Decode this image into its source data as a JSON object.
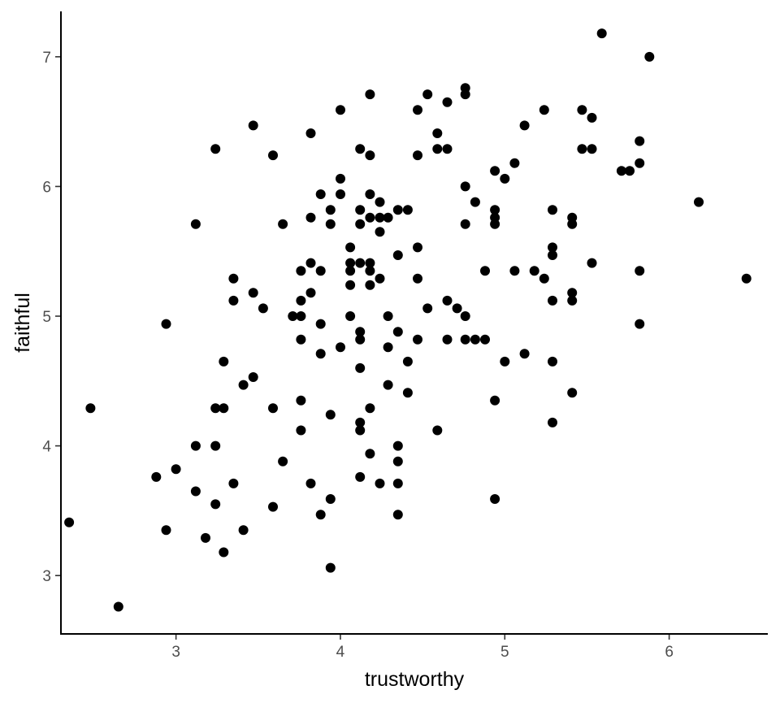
{
  "chart_data": {
    "type": "scatter",
    "title": "",
    "xlabel": "trustworthy",
    "ylabel": "faithful",
    "xlim": [
      2.3,
      6.6
    ],
    "ylim": [
      2.55,
      7.35
    ],
    "x_ticks": [
      3,
      4,
      5,
      6
    ],
    "y_ticks": [
      3,
      4,
      5,
      6,
      7
    ],
    "grid": false,
    "legend": "none",
    "point_color": "#000000",
    "points": [
      [
        2.35,
        3.41
      ],
      [
        2.48,
        4.29
      ],
      [
        2.65,
        2.76
      ],
      [
        2.88,
        3.76
      ],
      [
        2.94,
        3.35
      ],
      [
        2.94,
        4.94
      ],
      [
        3.0,
        3.82
      ],
      [
        3.12,
        3.65
      ],
      [
        3.12,
        4.0
      ],
      [
        3.12,
        5.71
      ],
      [
        3.18,
        3.29
      ],
      [
        3.24,
        3.55
      ],
      [
        3.24,
        4.0
      ],
      [
        3.24,
        4.29
      ],
      [
        3.24,
        6.29
      ],
      [
        3.29,
        3.18
      ],
      [
        3.29,
        4.29
      ],
      [
        3.29,
        4.65
      ],
      [
        3.35,
        3.71
      ],
      [
        3.35,
        5.12
      ],
      [
        3.35,
        5.29
      ],
      [
        3.41,
        3.35
      ],
      [
        3.41,
        4.47
      ],
      [
        3.47,
        4.53
      ],
      [
        3.47,
        5.18
      ],
      [
        3.47,
        6.47
      ],
      [
        3.53,
        5.06
      ],
      [
        3.59,
        3.53
      ],
      [
        3.59,
        4.29
      ],
      [
        3.59,
        6.24
      ],
      [
        3.65,
        3.88
      ],
      [
        3.65,
        5.71
      ],
      [
        3.71,
        5.0
      ],
      [
        3.76,
        4.12
      ],
      [
        3.76,
        4.35
      ],
      [
        3.76,
        4.82
      ],
      [
        3.76,
        5.0
      ],
      [
        3.76,
        5.12
      ],
      [
        3.76,
        5.35
      ],
      [
        3.82,
        3.71
      ],
      [
        3.82,
        5.18
      ],
      [
        3.82,
        5.41
      ],
      [
        3.82,
        5.76
      ],
      [
        3.82,
        6.41
      ],
      [
        3.88,
        3.47
      ],
      [
        3.88,
        4.71
      ],
      [
        3.88,
        4.94
      ],
      [
        3.88,
        5.35
      ],
      [
        3.88,
        5.94
      ],
      [
        3.94,
        3.06
      ],
      [
        3.94,
        3.59
      ],
      [
        3.94,
        4.24
      ],
      [
        3.94,
        5.71
      ],
      [
        3.94,
        5.82
      ],
      [
        4.0,
        4.76
      ],
      [
        4.0,
        5.94
      ],
      [
        4.0,
        6.06
      ],
      [
        4.0,
        6.59
      ],
      [
        4.06,
        5.0
      ],
      [
        4.06,
        5.24
      ],
      [
        4.06,
        5.35
      ],
      [
        4.06,
        5.41
      ],
      [
        4.06,
        5.53
      ],
      [
        4.12,
        3.76
      ],
      [
        4.12,
        4.12
      ],
      [
        4.12,
        4.18
      ],
      [
        4.12,
        4.6
      ],
      [
        4.12,
        4.82
      ],
      [
        4.12,
        4.88
      ],
      [
        4.12,
        5.41
      ],
      [
        4.12,
        5.71
      ],
      [
        4.12,
        5.82
      ],
      [
        4.12,
        6.29
      ],
      [
        4.18,
        3.94
      ],
      [
        4.18,
        4.29
      ],
      [
        4.18,
        5.24
      ],
      [
        4.18,
        5.35
      ],
      [
        4.18,
        5.41
      ],
      [
        4.18,
        5.76
      ],
      [
        4.18,
        5.94
      ],
      [
        4.18,
        6.24
      ],
      [
        4.18,
        6.71
      ],
      [
        4.24,
        3.71
      ],
      [
        4.24,
        5.29
      ],
      [
        4.24,
        5.65
      ],
      [
        4.24,
        5.76
      ],
      [
        4.24,
        5.88
      ],
      [
        4.29,
        4.47
      ],
      [
        4.29,
        4.76
      ],
      [
        4.29,
        5.0
      ],
      [
        4.29,
        5.76
      ],
      [
        4.35,
        3.47
      ],
      [
        4.35,
        3.71
      ],
      [
        4.35,
        3.88
      ],
      [
        4.35,
        4.0
      ],
      [
        4.35,
        4.88
      ],
      [
        4.35,
        5.47
      ],
      [
        4.35,
        5.82
      ],
      [
        4.41,
        4.41
      ],
      [
        4.41,
        4.65
      ],
      [
        4.41,
        5.82
      ],
      [
        4.47,
        4.82
      ],
      [
        4.47,
        5.29
      ],
      [
        4.47,
        5.53
      ],
      [
        4.47,
        6.24
      ],
      [
        4.47,
        6.59
      ],
      [
        4.53,
        5.06
      ],
      [
        4.53,
        6.71
      ],
      [
        4.59,
        4.12
      ],
      [
        4.59,
        6.29
      ],
      [
        4.59,
        6.41
      ],
      [
        4.65,
        4.82
      ],
      [
        4.65,
        5.12
      ],
      [
        4.65,
        6.29
      ],
      [
        4.65,
        6.65
      ],
      [
        4.71,
        5.06
      ],
      [
        4.76,
        4.82
      ],
      [
        4.76,
        5.0
      ],
      [
        4.76,
        5.71
      ],
      [
        4.76,
        6.0
      ],
      [
        4.76,
        6.71
      ],
      [
        4.76,
        6.76
      ],
      [
        4.82,
        4.82
      ],
      [
        4.82,
        5.88
      ],
      [
        4.88,
        4.82
      ],
      [
        4.88,
        5.35
      ],
      [
        4.94,
        3.59
      ],
      [
        4.94,
        4.35
      ],
      [
        4.94,
        5.71
      ],
      [
        4.94,
        5.76
      ],
      [
        4.94,
        5.82
      ],
      [
        4.94,
        6.12
      ],
      [
        5.0,
        4.65
      ],
      [
        5.0,
        6.06
      ],
      [
        5.06,
        5.35
      ],
      [
        5.06,
        6.18
      ],
      [
        5.12,
        4.71
      ],
      [
        5.12,
        6.47
      ],
      [
        5.18,
        5.35
      ],
      [
        5.24,
        5.29
      ],
      [
        5.24,
        6.59
      ],
      [
        5.29,
        4.18
      ],
      [
        5.29,
        4.65
      ],
      [
        5.29,
        5.12
      ],
      [
        5.29,
        5.47
      ],
      [
        5.29,
        5.53
      ],
      [
        5.29,
        5.82
      ],
      [
        5.41,
        4.41
      ],
      [
        5.41,
        5.12
      ],
      [
        5.41,
        5.18
      ],
      [
        5.41,
        5.71
      ],
      [
        5.41,
        5.76
      ],
      [
        5.47,
        6.29
      ],
      [
        5.47,
        6.59
      ],
      [
        5.53,
        5.41
      ],
      [
        5.53,
        6.29
      ],
      [
        5.53,
        6.53
      ],
      [
        5.59,
        7.18
      ],
      [
        5.71,
        6.12
      ],
      [
        5.76,
        6.12
      ],
      [
        5.82,
        4.94
      ],
      [
        5.82,
        5.35
      ],
      [
        5.82,
        6.18
      ],
      [
        5.82,
        6.35
      ],
      [
        5.88,
        7.0
      ],
      [
        6.18,
        5.88
      ],
      [
        6.47,
        5.29
      ]
    ]
  }
}
